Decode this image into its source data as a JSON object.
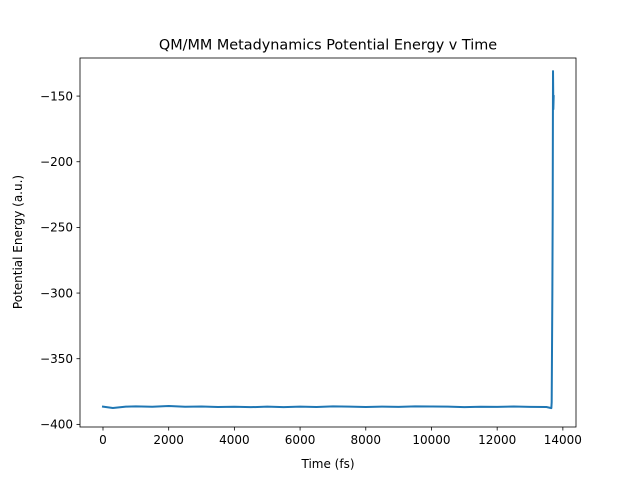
{
  "chart_data": {
    "type": "line",
    "title": "QM/MM Metadynamics Potential Energy v Time",
    "xlabel": "Time (fs)",
    "ylabel": "Potential Energy (a.u.)",
    "xlim": [
      -700,
      14400
    ],
    "ylim": [
      -402,
      -121
    ],
    "xticks": [
      0,
      2000,
      4000,
      6000,
      8000,
      10000,
      12000,
      14000
    ],
    "xtick_labels": [
      "0",
      "2000",
      "4000",
      "6000",
      "8000",
      "10000",
      "12000",
      "14000"
    ],
    "yticks": [
      -400,
      -350,
      -300,
      -250,
      -200,
      -150
    ],
    "ytick_labels": [
      "−400",
      "−350",
      "−300",
      "−250",
      "−200",
      "−150"
    ],
    "grid": false,
    "color": "#1f77b4",
    "series": [
      {
        "x": [
          0,
          300,
          700,
          1000,
          1500,
          2000,
          2500,
          3000,
          3500,
          4000,
          4500,
          5000,
          5500,
          6000,
          6500,
          7000,
          7500,
          8000,
          8500,
          9000,
          9500,
          10000,
          10500,
          11000,
          11500,
          12000,
          12500,
          13000,
          13500,
          13650,
          13660,
          13680,
          13690,
          13700,
          13710,
          13720
        ],
        "y": [
          -386.5,
          -387.5,
          -386.5,
          -386.3,
          -386.6,
          -386.0,
          -386.6,
          -386.4,
          -386.8,
          -386.6,
          -386.9,
          -386.5,
          -386.9,
          -386.5,
          -386.8,
          -386.3,
          -386.5,
          -386.8,
          -386.5,
          -386.7,
          -386.3,
          -386.4,
          -386.5,
          -386.9,
          -386.6,
          -386.7,
          -386.4,
          -386.7,
          -386.8,
          -387.6,
          -383.0,
          -300.0,
          -240.0,
          -131.0,
          -160.0,
          -150.0
        ]
      }
    ]
  }
}
